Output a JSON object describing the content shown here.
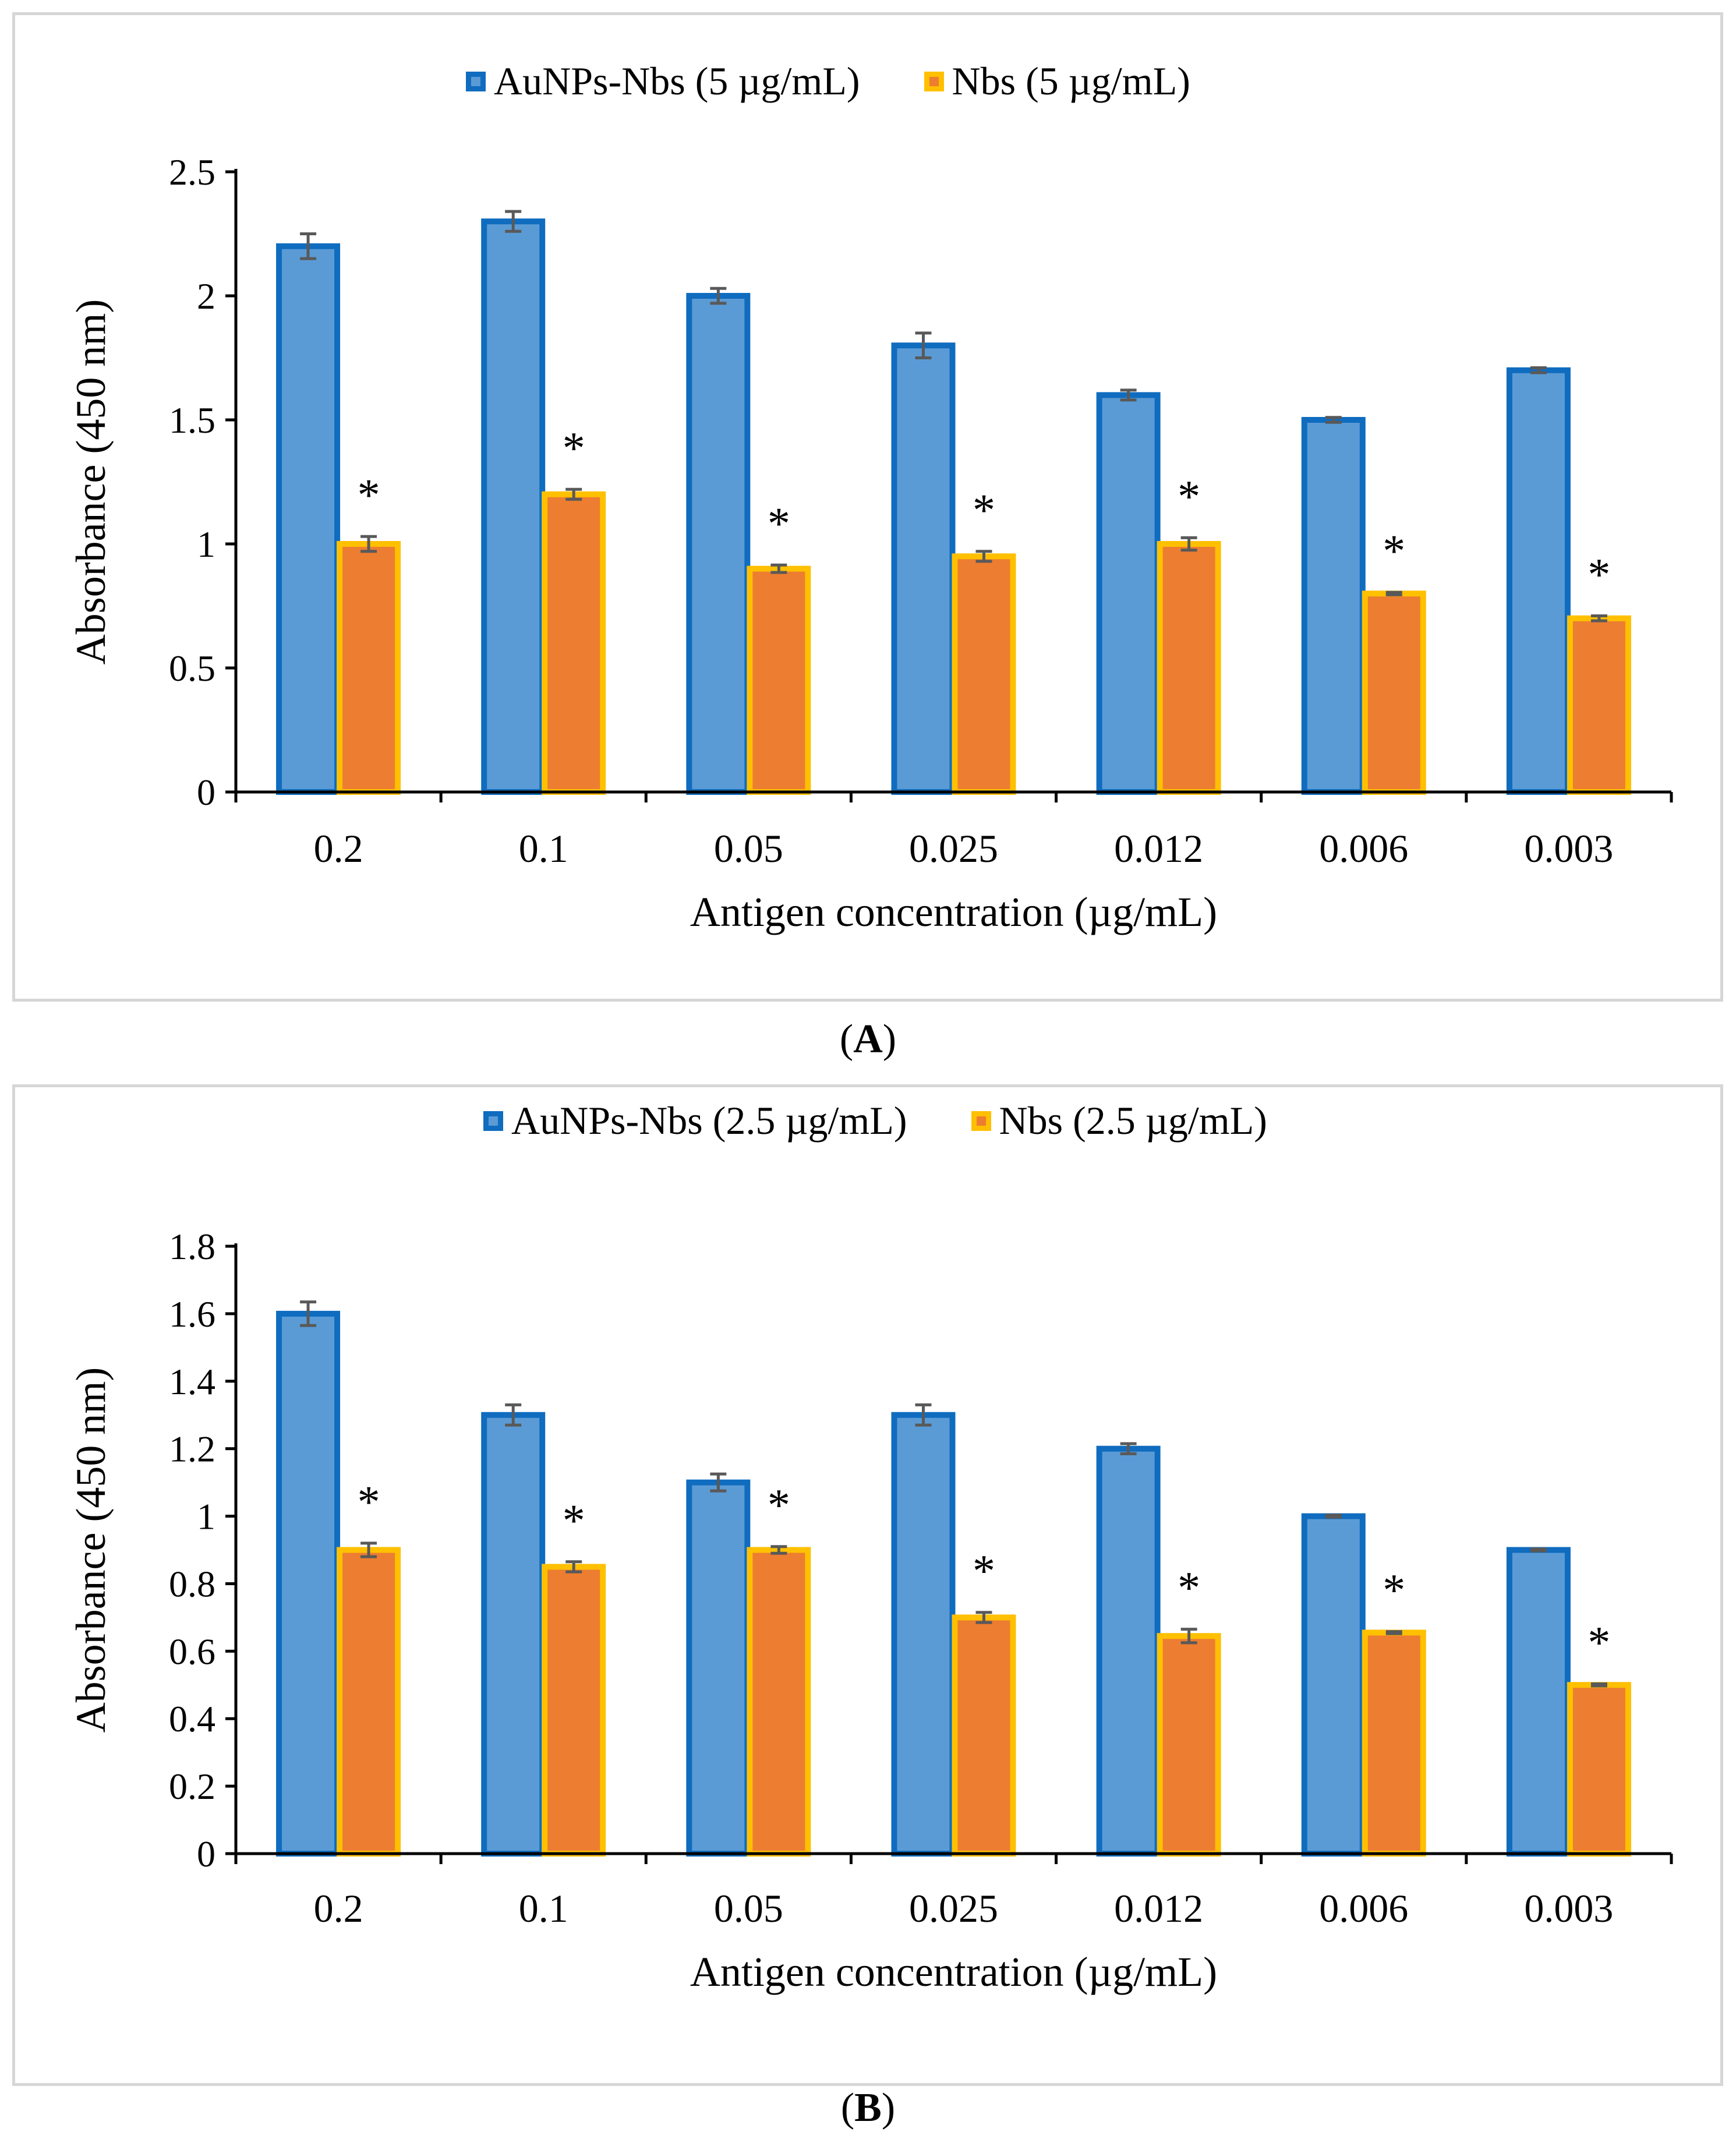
{
  "captions": {
    "a": "A",
    "b": "B"
  },
  "colors": {
    "series1_fill": "#5b9bd5",
    "series1_edge": "#0f6cbf",
    "series2_fill": "#ed7d31",
    "series2_edge": "#ffc000",
    "error_bar": "#595959",
    "axis": "#000000"
  },
  "chart_data": [
    {
      "type": "bar",
      "panel": "A",
      "title": "",
      "xlabel": "Antigen concentration (µg/mL)",
      "ylabel": "Absorbance (450 nm)",
      "categories": [
        "0.2",
        "0.1",
        "0.05",
        "0.025",
        "0.012",
        "0.006",
        "0.003"
      ],
      "ylim": [
        0,
        2.5
      ],
      "yticks": [
        0,
        0.5,
        1,
        1.5,
        2,
        2.5
      ],
      "ytick_labels": [
        "0",
        "0.5",
        "1",
        "1.5",
        "2",
        "2.5"
      ],
      "grid": false,
      "legend": "top-center",
      "significance_marker": "*",
      "series": [
        {
          "name": "AuNPs-Nbs (5 µg/mL)",
          "values": [
            2.2,
            2.3,
            2.0,
            1.8,
            1.6,
            1.5,
            1.7
          ],
          "errors": [
            0.05,
            0.04,
            0.03,
            0.05,
            0.02,
            0.01,
            0.01
          ]
        },
        {
          "name": "Nbs (5 µg/mL)",
          "values": [
            1.0,
            1.2,
            0.9,
            0.95,
            1.0,
            0.8,
            0.7
          ],
          "errors": [
            0.03,
            0.02,
            0.015,
            0.02,
            0.025,
            0.005,
            0.01
          ]
        }
      ]
    },
    {
      "type": "bar",
      "panel": "B",
      "title": "",
      "xlabel": "Antigen concentration (µg/mL)",
      "ylabel": "Absorbance (450 nm)",
      "categories": [
        "0.2",
        "0.1",
        "0.05",
        "0.025",
        "0.012",
        "0.006",
        "0.003"
      ],
      "ylim": [
        0,
        1.8
      ],
      "yticks": [
        0,
        0.2,
        0.4,
        0.6,
        0.8,
        1,
        1.2,
        1.4,
        1.6,
        1.8
      ],
      "ytick_labels": [
        "0",
        "0.2",
        "0.4",
        "0.6",
        "0.8",
        "1",
        "1.2",
        "1.4",
        "1.6",
        "1.8"
      ],
      "grid": false,
      "legend": "top-center",
      "significance_marker": "*",
      "series": [
        {
          "name": "AuNPs-Nbs (2.5 µg/mL)",
          "values": [
            1.6,
            1.3,
            1.1,
            1.3,
            1.2,
            1.0,
            0.9
          ],
          "errors": [
            0.035,
            0.03,
            0.025,
            0.03,
            0.015,
            0.003,
            0.003
          ]
        },
        {
          "name": "Nbs (2.5 µg/mL)",
          "values": [
            0.9,
            0.85,
            0.9,
            0.7,
            0.645,
            0.655,
            0.5
          ],
          "errors": [
            0.02,
            0.015,
            0.01,
            0.015,
            0.02,
            0.003,
            0.003
          ]
        }
      ]
    }
  ]
}
